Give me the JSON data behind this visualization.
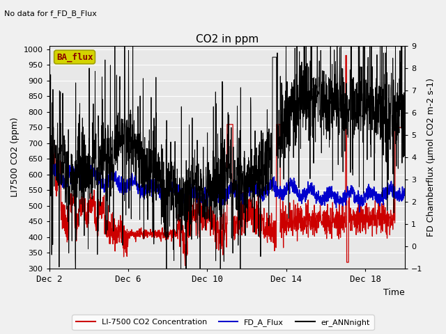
{
  "title": "CO2 in ppm",
  "top_left_text": "No data for f_FD_B_Flux",
  "badge_text": "BA_flux",
  "xlabel": "Time",
  "ylabel_left": "LI7500 CO2 (ppm)",
  "ylabel_right": "FD Chamberflux (μmol CO2 m-2 s-1)",
  "ylim_left": [
    300,
    1010
  ],
  "ylim_right": [
    -1.0,
    9.0
  ],
  "xlim": [
    0,
    18
  ],
  "xticks": [
    0,
    4,
    8,
    12,
    16
  ],
  "xticklabels": [
    "Dec 2",
    "Dec 6",
    "Dec 10",
    "Dec 14",
    "Dec 18"
  ],
  "yticks_left": [
    300,
    350,
    400,
    450,
    500,
    550,
    600,
    650,
    700,
    750,
    800,
    850,
    900,
    950,
    1000
  ],
  "yticks_right": [
    -1.0,
    0.0,
    1.0,
    2.0,
    3.0,
    4.0,
    5.0,
    6.0,
    7.0,
    8.0,
    9.0
  ],
  "legend_entries": [
    "LI-7500 CO2 Concentration",
    "FD_A_Flux",
    "er_ANNnight"
  ],
  "line_colors": [
    "#cc0000",
    "#0000cc",
    "#000000"
  ],
  "fig_bg_color": "#f0f0f0",
  "plot_bg_color": "#e8e8e8",
  "grid_color": "#ffffff",
  "badge_bg": "#d4d400",
  "badge_edge_color": "#a0a000",
  "badge_text_color": "#880000"
}
